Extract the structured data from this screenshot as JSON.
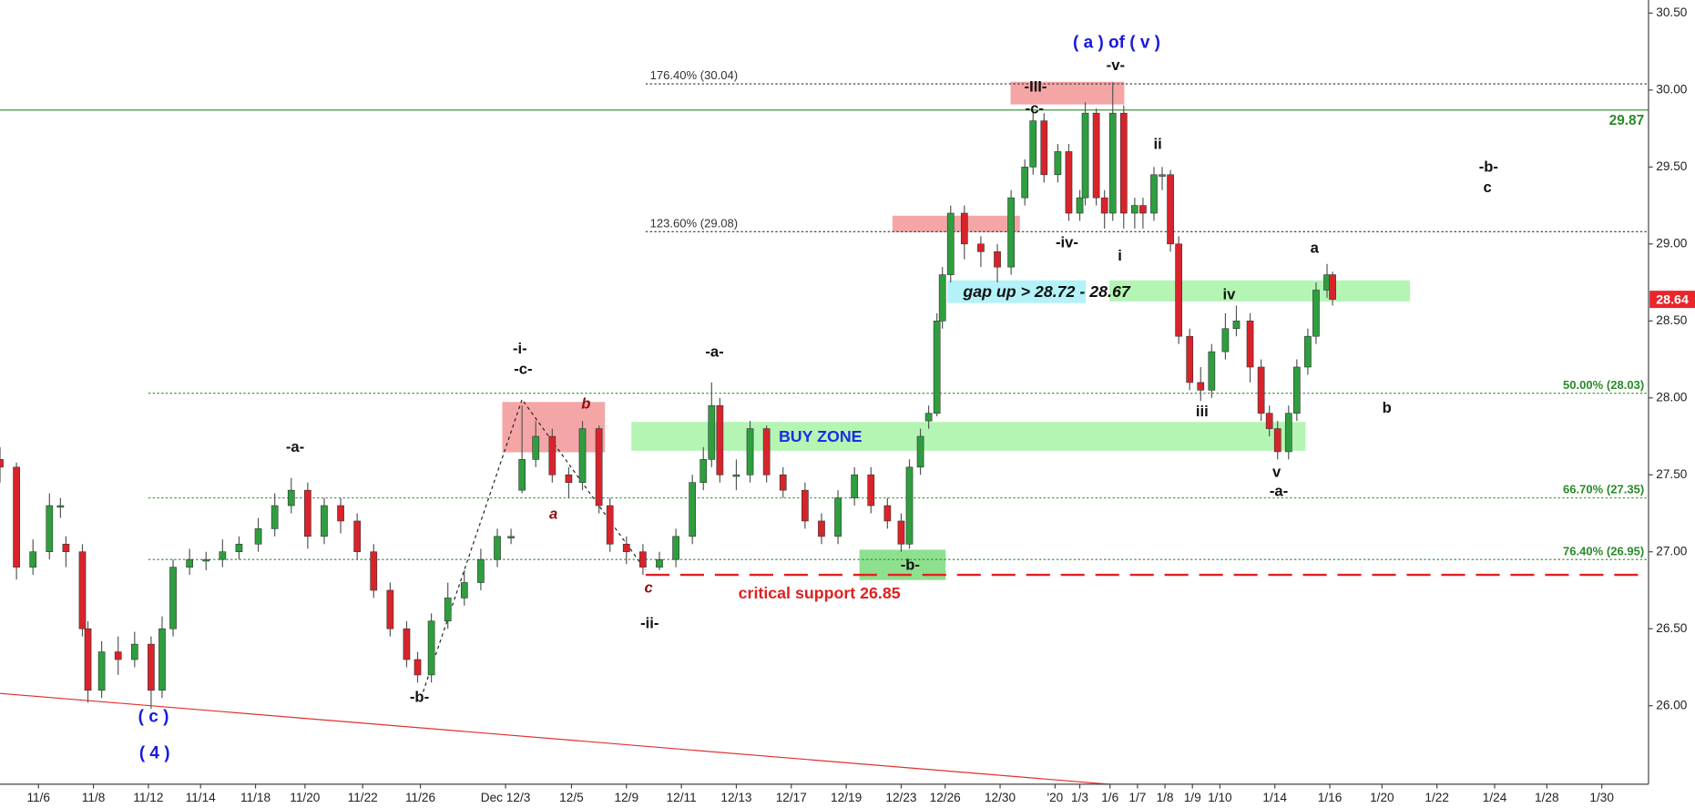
{
  "chart_data": {
    "type": "candlestick",
    "up_color": "#2e9e3e",
    "down_color": "#d9232b",
    "xlim": [
      0,
      60
    ],
    "ylim": [
      25.49,
      30.585
    ],
    "xticks": [
      {
        "value": 1.4,
        "label": "11/6"
      },
      {
        "value": 3.4,
        "label": "11/8"
      },
      {
        "value": 5.4,
        "label": "11/12"
      },
      {
        "value": 7.3,
        "label": "11/14"
      },
      {
        "value": 9.3,
        "label": "11/18"
      },
      {
        "value": 11.1,
        "label": "11/20"
      },
      {
        "value": 13.2,
        "label": "11/22"
      },
      {
        "value": 15.3,
        "label": "11/26"
      },
      {
        "value": 18.4,
        "label": "Dec 12/3"
      },
      {
        "value": 20.8,
        "label": "12/5"
      },
      {
        "value": 22.8,
        "label": "12/9"
      },
      {
        "value": 24.8,
        "label": "12/11"
      },
      {
        "value": 26.8,
        "label": "12/13"
      },
      {
        "value": 28.8,
        "label": "12/17"
      },
      {
        "value": 30.8,
        "label": "12/19"
      },
      {
        "value": 32.8,
        "label": "12/23"
      },
      {
        "value": 34.4,
        "label": "12/26"
      },
      {
        "value": 36.4,
        "label": "12/30"
      },
      {
        "value": 38.4,
        "label": "'20"
      },
      {
        "value": 39.3,
        "label": "1/3"
      },
      {
        "value": 40.4,
        "label": "1/6"
      },
      {
        "value": 41.4,
        "label": "1/7"
      },
      {
        "value": 42.4,
        "label": "1/8"
      },
      {
        "value": 43.4,
        "label": "1/9"
      },
      {
        "value": 44.4,
        "label": "1/10"
      },
      {
        "value": 46.4,
        "label": "1/14"
      },
      {
        "value": 48.4,
        "label": "1/16"
      },
      {
        "value": 50.3,
        "label": "1/20"
      },
      {
        "value": 52.3,
        "label": "1/22"
      },
      {
        "value": 54.4,
        "label": "1/24"
      },
      {
        "value": 56.3,
        "label": "1/28"
      },
      {
        "value": 58.3,
        "label": "1/30"
      }
    ],
    "yticks": [
      {
        "value": 26,
        "label": "26.00"
      },
      {
        "value": 26.5,
        "label": "26.50"
      },
      {
        "value": 27,
        "label": "27.00"
      },
      {
        "value": 27.5,
        "label": "27.50"
      },
      {
        "value": 28,
        "label": "28.00"
      },
      {
        "value": 28.5,
        "label": "28.50"
      },
      {
        "value": 29,
        "label": "29.00"
      },
      {
        "value": 29.5,
        "label": "29.50"
      },
      {
        "value": 30,
        "label": "30.00"
      },
      {
        "value": 30.5,
        "label": "30.50"
      }
    ],
    "x": [
      0.0,
      0.6,
      1.2,
      1.8,
      2.2,
      2.4,
      3.0,
      3.2,
      3.7,
      4.3,
      4.9,
      5.5,
      5.9,
      6.3,
      6.9,
      7.5,
      8.1,
      8.7,
      9.4,
      10.0,
      10.6,
      11.2,
      11.8,
      12.4,
      13.0,
      13.6,
      14.2,
      14.8,
      15.2,
      15.7,
      16.3,
      16.9,
      17.5,
      18.1,
      18.6,
      19.0,
      19.5,
      20.1,
      20.7,
      21.2,
      21.8,
      22.2,
      22.8,
      23.4,
      24.0,
      24.6,
      25.2,
      25.6,
      25.9,
      26.2,
      26.8,
      27.3,
      27.9,
      28.5,
      29.3,
      29.9,
      30.5,
      31.1,
      31.7,
      32.3,
      32.8,
      33.1,
      33.5,
      33.8,
      34.1,
      34.3,
      34.6,
      35.1,
      35.7,
      36.3,
      36.8,
      37.3,
      37.6,
      38.0,
      38.5,
      38.9,
      39.3,
      39.5,
      39.9,
      40.2,
      40.5,
      40.9,
      41.3,
      41.6,
      42.0,
      42.3,
      42.6,
      42.9,
      43.3,
      43.7,
      44.1,
      44.6,
      45.0,
      45.5,
      45.9,
      46.2,
      46.5,
      46.9,
      47.2,
      47.6,
      47.9,
      48.3,
      48.5
    ],
    "open": [
      27.6,
      27.55,
      26.9,
      27.0,
      27.3,
      27.05,
      27.0,
      26.5,
      26.1,
      26.35,
      26.3,
      26.4,
      26.1,
      26.5,
      26.9,
      26.95,
      26.95,
      27.0,
      27.05,
      27.15,
      27.3,
      27.4,
      27.1,
      27.3,
      27.2,
      27.0,
      26.75,
      26.5,
      26.3,
      26.2,
      26.55,
      26.7,
      26.8,
      26.95,
      27.1,
      27.4,
      27.6,
      27.75,
      27.5,
      27.45,
      27.8,
      27.3,
      27.05,
      27.0,
      26.9,
      26.95,
      27.1,
      27.45,
      27.6,
      27.95,
      27.5,
      27.5,
      27.8,
      27.5,
      27.4,
      27.2,
      27.1,
      27.35,
      27.5,
      27.3,
      27.2,
      27.05,
      27.55,
      27.85,
      27.9,
      28.5,
      28.8,
      29.2,
      29.0,
      28.95,
      28.85,
      29.3,
      29.5,
      29.8,
      29.45,
      29.6,
      29.2,
      29.3,
      29.85,
      29.3,
      29.2,
      29.85,
      29.2,
      29.25,
      29.2,
      29.45,
      29.45,
      29.0,
      28.4,
      28.1,
      28.05,
      28.3,
      28.45,
      28.5,
      28.2,
      27.9,
      27.8,
      27.65,
      27.9,
      28.2,
      28.4,
      28.7,
      28.8
    ],
    "high": [
      27.68,
      27.58,
      27.08,
      27.38,
      27.35,
      27.1,
      27.05,
      26.55,
      26.42,
      26.45,
      26.48,
      26.45,
      26.58,
      26.95,
      27.02,
      27.0,
      27.08,
      27.1,
      27.22,
      27.38,
      27.48,
      27.45,
      27.35,
      27.35,
      27.25,
      27.05,
      26.8,
      26.55,
      26.35,
      26.6,
      26.8,
      26.88,
      27.02,
      27.15,
      27.15,
      27.95,
      27.85,
      27.8,
      27.55,
      27.85,
      27.82,
      27.35,
      27.1,
      27.05,
      27.0,
      27.15,
      27.5,
      27.68,
      28.1,
      28.0,
      27.6,
      27.85,
      27.82,
      27.55,
      27.45,
      27.25,
      27.4,
      27.55,
      27.55,
      27.35,
      27.25,
      27.6,
      27.8,
      27.95,
      28.55,
      28.85,
      29.25,
      29.25,
      29.05,
      29.0,
      29.35,
      29.55,
      29.85,
      29.85,
      29.65,
      29.65,
      29.35,
      29.92,
      29.88,
      29.35,
      30.05,
      29.9,
      29.3,
      29.3,
      29.5,
      29.5,
      29.48,
      29.05,
      28.45,
      28.2,
      28.35,
      28.55,
      28.6,
      28.55,
      28.25,
      27.95,
      27.85,
      27.95,
      28.25,
      28.45,
      28.75,
      28.87,
      28.82
    ],
    "low": [
      27.45,
      26.82,
      26.85,
      26.95,
      27.22,
      26.9,
      26.45,
      26.02,
      26.05,
      26.2,
      26.25,
      25.98,
      26.05,
      26.45,
      26.85,
      26.88,
      26.9,
      26.95,
      27.0,
      27.1,
      27.25,
      27.02,
      27.05,
      27.12,
      26.95,
      26.7,
      26.45,
      26.25,
      26.15,
      26.15,
      26.5,
      26.65,
      26.75,
      26.9,
      27.05,
      27.38,
      27.55,
      27.45,
      27.35,
      27.4,
      27.25,
      27.0,
      26.92,
      26.85,
      26.88,
      26.9,
      27.05,
      27.4,
      27.55,
      27.45,
      27.4,
      27.45,
      27.45,
      27.35,
      27.15,
      27.05,
      27.05,
      27.3,
      27.25,
      27.15,
      27.0,
      27.02,
      27.5,
      27.8,
      27.88,
      28.45,
      28.75,
      28.9,
      28.85,
      28.75,
      28.8,
      29.25,
      29.45,
      29.4,
      29.4,
      29.15,
      29.15,
      29.25,
      29.25,
      29.1,
      29.15,
      29.1,
      29.1,
      29.1,
      29.15,
      29.35,
      28.95,
      28.35,
      28.05,
      27.98,
      28.0,
      28.25,
      28.4,
      28.1,
      27.85,
      27.75,
      27.6,
      27.6,
      27.85,
      28.15,
      28.35,
      28.65,
      28.6
    ],
    "close": [
      27.55,
      26.9,
      27.0,
      27.3,
      27.3,
      27.0,
      26.5,
      26.1,
      26.35,
      26.3,
      26.4,
      26.1,
      26.5,
      26.9,
      26.95,
      26.95,
      27.0,
      27.05,
      27.15,
      27.3,
      27.4,
      27.1,
      27.3,
      27.2,
      27.0,
      26.75,
      26.5,
      26.3,
      26.2,
      26.55,
      26.7,
      26.8,
      26.95,
      27.1,
      27.1,
      27.6,
      27.75,
      27.5,
      27.45,
      27.8,
      27.3,
      27.05,
      27.0,
      26.9,
      26.95,
      27.1,
      27.45,
      27.6,
      27.95,
      27.5,
      27.5,
      27.8,
      27.5,
      27.4,
      27.2,
      27.1,
      27.35,
      27.5,
      27.3,
      27.2,
      27.05,
      27.55,
      27.75,
      27.9,
      28.5,
      28.8,
      29.2,
      29.0,
      28.95,
      28.85,
      29.3,
      29.5,
      29.8,
      29.45,
      29.6,
      29.2,
      29.3,
      29.85,
      29.3,
      29.2,
      29.85,
      29.2,
      29.25,
      29.2,
      29.45,
      29.45,
      29.0,
      28.4,
      28.1,
      28.05,
      28.3,
      28.45,
      28.5,
      28.2,
      27.9,
      27.8,
      27.65,
      27.9,
      28.2,
      28.4,
      28.7,
      28.8,
      28.64
    ],
    "levels": [
      {
        "value": 30.04,
        "label": "176.40% (30.04)",
        "color": "#333333",
        "from": 23.5,
        "side": "left"
      },
      {
        "value": 29.08,
        "label": "123.60% (29.08)",
        "color": "#333333",
        "from": 23.5,
        "side": "left"
      },
      {
        "value": 28.03,
        "label": "50.00% (28.03)",
        "color": "#2a8a2a",
        "from": 5.4,
        "side": "right"
      },
      {
        "value": 27.35,
        "label": "66.70% (27.35)",
        "color": "#2a8a2a",
        "from": 5.4,
        "side": "right"
      },
      {
        "value": 26.95,
        "label": "76.40% (26.95)",
        "color": "#2a8a2a",
        "from": 5.4,
        "side": "right"
      }
    ],
    "resistance": {
      "value": 29.87,
      "label": "29.87",
      "color": "#2a8a2a"
    },
    "support": {
      "value": 26.85,
      "label": "critical support 26.85",
      "color": "#e02020"
    },
    "last_price": 28.64,
    "zones": [
      {
        "x": [
          18.3,
          22.0
        ],
        "y": [
          27.65,
          27.97
        ],
        "color": "#f4a6a6"
      },
      {
        "x": [
          23.0,
          47.5
        ],
        "y": [
          27.66,
          27.84
        ],
        "color": "#b4f5b4",
        "label": "BUY ZONE",
        "label_color": "#1c2ee0"
      },
      {
        "x": [
          31.3,
          34.4
        ],
        "y": [
          26.82,
          27.01
        ],
        "color": "#8ee08e"
      },
      {
        "x": [
          32.5,
          37.1
        ],
        "y": [
          29.08,
          29.18
        ],
        "color": "#f4a6a6"
      },
      {
        "x": [
          34.5,
          39.5
        ],
        "y": [
          28.62,
          28.76
        ],
        "color": "#b2f2f8",
        "label": "gap up > 28.72 - 28.67",
        "label_color": "#111111"
      },
      {
        "x": [
          40.4,
          51.3
        ],
        "y": [
          28.63,
          28.76
        ],
        "color": "#b4f5b4"
      },
      {
        "x": [
          36.8,
          40.9
        ],
        "y": [
          29.91,
          30.05
        ],
        "color": "#f4a6a6"
      }
    ],
    "trendlines": [
      {
        "x": [
          0,
          42.4
        ],
        "y": [
          26.08,
          25.46
        ],
        "color": "#e03030",
        "dash": false
      },
      {
        "x": [
          15.4,
          19.0,
          23.5
        ],
        "y": [
          26.09,
          27.99,
          26.88
        ],
        "color": "#222222",
        "dash": true
      }
    ],
    "annotations": [
      {
        "text": "-i-",
        "color": "#111111"
      },
      {
        "text": "-c-",
        "color": "#111111"
      },
      {
        "text": "b",
        "color": "#8b1010"
      },
      {
        "text": "a",
        "color": "#8b1010"
      },
      {
        "text": "c",
        "color": "#8b1010"
      },
      {
        "text": "-ii-",
        "color": "#111111"
      },
      {
        "text": "-a-",
        "color": "#111111"
      },
      {
        "text": "-a-",
        "color": "#111111"
      },
      {
        "text": "-b-",
        "color": "#111111"
      },
      {
        "text": "( c )",
        "color": "#1a1adb"
      },
      {
        "text": "( 4 )",
        "color": "#1a1adb"
      },
      {
        "text": "-b-",
        "color": "#111111"
      },
      {
        "text": "( a ) of ( v )",
        "color": "#1a1adb"
      },
      {
        "text": "-v-",
        "color": "#111111"
      },
      {
        "text": "-III-",
        "color": "#111111"
      },
      {
        "text": "-c-",
        "color": "#111111"
      },
      {
        "text": "-iv-",
        "color": "#111111"
      },
      {
        "text": "i",
        "color": "#111111"
      },
      {
        "text": "ii",
        "color": "#111111"
      },
      {
        "text": "iv",
        "color": "#111111"
      },
      {
        "text": "iii",
        "color": "#111111"
      },
      {
        "text": "v",
        "color": "#111111"
      },
      {
        "text": "-a-",
        "color": "#111111"
      },
      {
        "text": "a",
        "color": "#111111"
      },
      {
        "text": "b",
        "color": "#111111"
      },
      {
        "text": "-b-",
        "color": "#111111"
      },
      {
        "text": "c",
        "color": "#111111"
      }
    ]
  }
}
